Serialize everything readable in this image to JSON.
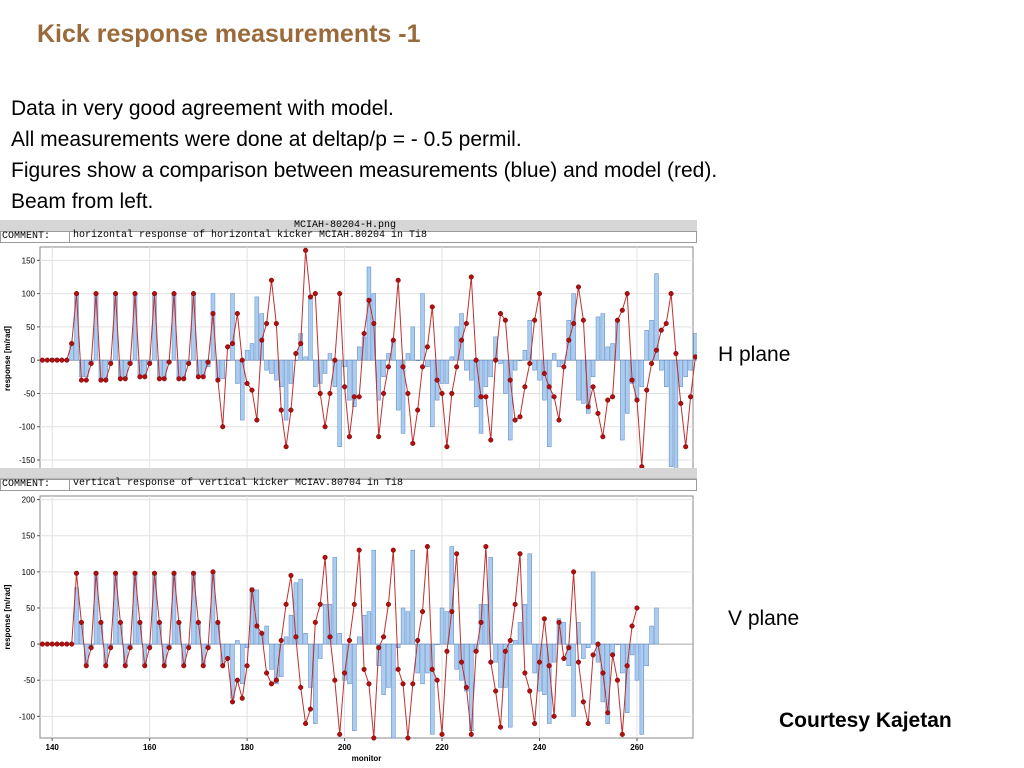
{
  "slide": {
    "title": "Kick response measurements -1",
    "lines": [
      "Data in very good agreement with model.",
      "All measurements were done at deltap/p = - 0.5 permil.",
      "Figures show a comparison between measurements (blue) and model (red).",
      "Beam from left."
    ],
    "h_plane_label": "H plane",
    "v_plane_label": "V plane",
    "courtesy": "Courtesy Kajetan"
  },
  "panels": [
    {
      "file_title": "MCIAH-80204-H.png",
      "comment_label": "COMMENT:",
      "comment": "horizontal response of horizontal kicker MCIAH.80204 in Ti8"
    },
    {
      "file_title": "",
      "comment_label": "COMMENT:",
      "comment": "vertical response of vertical kicker MCIAV.80704 in Ti8"
    }
  ],
  "colors": {
    "measurement": "#aaccee",
    "measurement_edge": "#5a86c8",
    "model": "#b01010",
    "model_line": "#c03030",
    "title": "#9a6a3a"
  },
  "chart_data": [
    {
      "type": "bar",
      "ylabel": "response [m/rad]",
      "xlabel": "",
      "ylim": [
        -165,
        170
      ],
      "xlim": [
        137.5,
        271.5
      ],
      "yticks": [
        150,
        100,
        50,
        0,
        -50,
        -100,
        -150
      ],
      "xticks": [],
      "grid": true,
      "series": [
        {
          "values": [
            0,
            0,
            3,
            3,
            0,
            0,
            25,
            100,
            -25,
            -25,
            -5,
            100,
            -30,
            -30,
            -5,
            100,
            -28,
            -28,
            -5,
            100,
            -25,
            -25,
            -5,
            100,
            -28,
            -28,
            -3,
            100,
            -28,
            -28,
            -5,
            100,
            -25,
            -25,
            -10,
            100,
            -28,
            -28,
            0,
            100,
            -35,
            -90,
            15,
            25,
            95,
            70,
            -15,
            -20,
            -30,
            -40,
            -90,
            -35,
            0,
            40,
            5,
            95,
            -40,
            -35,
            -20,
            10,
            -40,
            -130,
            -10,
            -60,
            -70,
            20,
            35,
            140,
            100,
            -60,
            -25,
            10,
            30,
            -75,
            -110,
            10,
            50,
            0,
            100,
            -10,
            -100,
            -60,
            -35,
            -35,
            5,
            50,
            70,
            -15,
            -30,
            -70,
            -110,
            -40,
            -25,
            35,
            -5,
            -50,
            -120,
            -15,
            0,
            15,
            60,
            -15,
            -30,
            -60,
            -130,
            10,
            -10,
            -5,
            60,
            100,
            -60,
            -65,
            -80,
            -25,
            65,
            70,
            20,
            25,
            60,
            -120,
            -80,
            -35,
            -60,
            -40,
            45,
            60,
            130,
            -15,
            -40,
            -160,
            -165,
            -40,
            -25,
            -15,
            40,
            60,
            95,
            20,
            -30,
            -60,
            -130,
            -30,
            0,
            -5
          ]
        },
        {
          "values": [
            0,
            0,
            0,
            0,
            0,
            0,
            25,
            100,
            -30,
            -30,
            -5,
            100,
            -30,
            -30,
            -5,
            100,
            -28,
            -28,
            -5,
            100,
            -25,
            -25,
            -5,
            100,
            -28,
            -28,
            -3,
            100,
            -28,
            -28,
            -5,
            100,
            -25,
            -25,
            -3,
            70,
            -30,
            -100,
            20,
            25,
            70,
            0,
            -35,
            -45,
            -90,
            30,
            55,
            120,
            55,
            -75,
            -130,
            -75,
            10,
            25,
            165,
            95,
            100,
            -50,
            -100,
            -50,
            0,
            100,
            -40,
            -115,
            -55,
            -55,
            40,
            90,
            55,
            -115,
            -50,
            -10,
            30,
            120,
            -10,
            -50,
            -125,
            -75,
            -10,
            20,
            80,
            -30,
            -50,
            -130,
            -50,
            -10,
            30,
            55,
            125,
            0,
            -55,
            -55,
            -120,
            0,
            70,
            60,
            -30,
            -90,
            -85,
            -40,
            -5,
            60,
            100,
            -20,
            -40,
            -55,
            -90,
            -10,
            30,
            55,
            110,
            60,
            -70,
            -40,
            -80,
            -115,
            -60,
            -55,
            60,
            75,
            100,
            -30,
            -60,
            -160,
            -45,
            -5,
            15,
            45,
            55,
            100,
            10,
            -65,
            -130,
            -55,
            5,
            0
          ]
        }
      ]
    },
    {
      "type": "bar",
      "ylabel": "response [m/rad]",
      "xlabel": "monitor",
      "ylim": [
        -130,
        205
      ],
      "xlim": [
        137.5,
        271.5
      ],
      "xticks": [
        140,
        160,
        180,
        200,
        220,
        240,
        260
      ],
      "yticks": [
        200,
        150,
        100,
        50,
        0,
        -50,
        -100
      ],
      "grid": true,
      "series": [
        {
          "values": [
            0,
            0,
            0,
            0,
            0,
            0,
            0,
            78,
            30,
            -30,
            -5,
            98,
            30,
            -30,
            -5,
            98,
            30,
            -30,
            -5,
            98,
            30,
            -30,
            -5,
            98,
            30,
            -30,
            -5,
            98,
            30,
            -30,
            -5,
            98,
            30,
            -30,
            -5,
            98,
            30,
            -30,
            -20,
            -75,
            5,
            -55,
            -5,
            78,
            75,
            15,
            25,
            -35,
            -55,
            -45,
            10,
            40,
            85,
            90,
            15,
            -60,
            -110,
            -20,
            55,
            55,
            120,
            15,
            -50,
            -55,
            -120,
            10,
            40,
            45,
            130,
            -30,
            -70,
            -60,
            -130,
            -5,
            50,
            45,
            130,
            -40,
            -55,
            -40,
            -125,
            0,
            50,
            45,
            135,
            -35,
            -50,
            -65,
            -120,
            -10,
            55,
            55,
            120,
            -25,
            -60,
            -60,
            -115,
            5,
            30,
            55,
            125,
            -40,
            -65,
            -70,
            -110,
            -25,
            35,
            30,
            -30,
            -100,
            30,
            -20,
            -5,
            100,
            -25,
            -80,
            -110,
            -15,
            0,
            -40,
            -95,
            -15,
            -50,
            -125,
            -30,
            25,
            50
          ]
        },
        {
          "values": [
            0,
            0,
            0,
            0,
            0,
            0,
            0,
            98,
            30,
            -30,
            -5,
            98,
            30,
            -30,
            -5,
            98,
            30,
            -30,
            -5,
            98,
            30,
            -30,
            -5,
            98,
            30,
            -30,
            -5,
            98,
            30,
            -30,
            -5,
            98,
            30,
            -30,
            -5,
            100,
            30,
            -30,
            -20,
            -80,
            -50,
            -75,
            -30,
            75,
            25,
            15,
            -40,
            -55,
            -50,
            5,
            55,
            95,
            10,
            -60,
            -110,
            -90,
            30,
            55,
            120,
            10,
            -50,
            -125,
            -40,
            5,
            55,
            130,
            -35,
            -55,
            -130,
            -5,
            10,
            55,
            130,
            -35,
            -55,
            -130,
            -55,
            5,
            45,
            135,
            -35,
            -50,
            -125,
            -10,
            45,
            125,
            -25,
            -60,
            -125,
            -10,
            30,
            135,
            -25,
            -65,
            -115,
            -10,
            5,
            55,
            125,
            -40,
            -65,
            -110,
            -25,
            35,
            -30,
            -100,
            30,
            -20,
            -5,
            100,
            -25,
            -80,
            -110,
            -15,
            0,
            -40,
            -95,
            -15,
            -50,
            -125,
            -30,
            25,
            50
          ]
        }
      ]
    }
  ]
}
